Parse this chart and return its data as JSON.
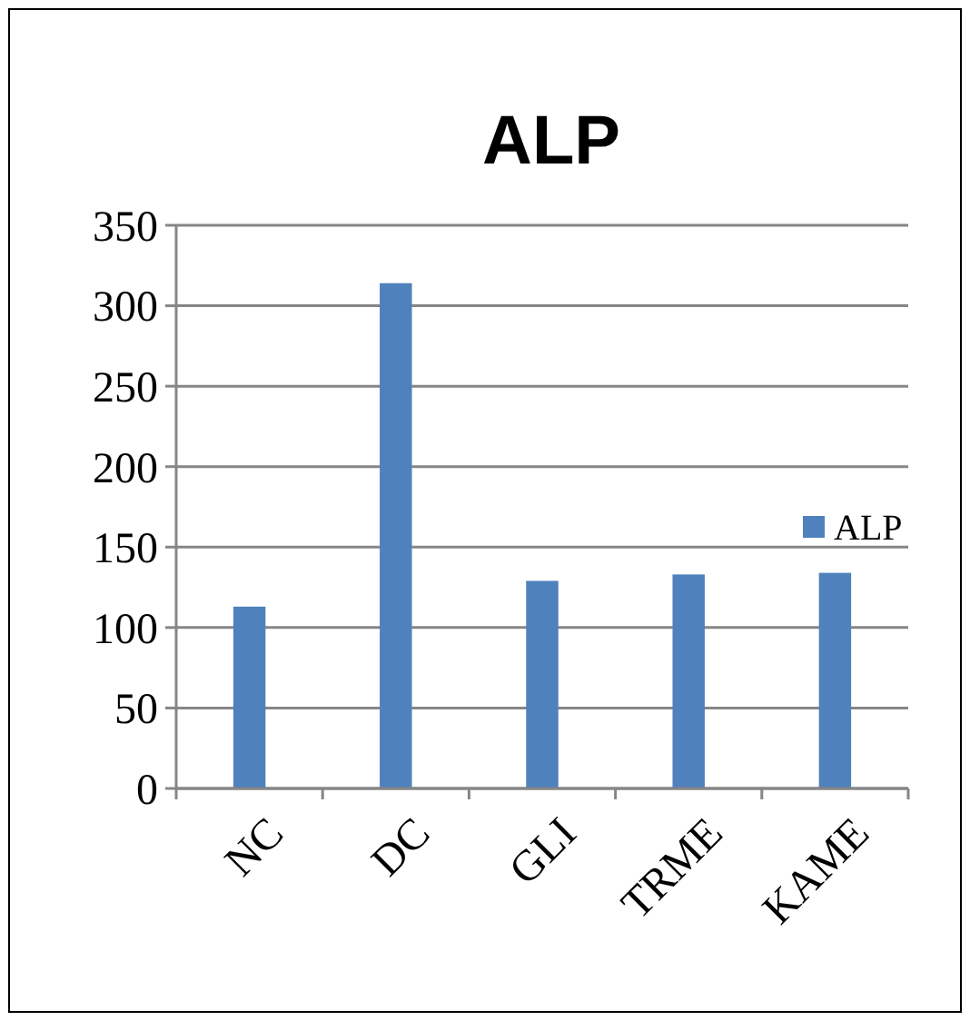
{
  "chart_data": {
    "type": "bar",
    "title": "ALP",
    "categories": [
      "NC",
      "DC",
      "GLI",
      "TRME",
      "KAME"
    ],
    "series": [
      {
        "name": "ALP",
        "color": "#4f81bd",
        "values": [
          113,
          314,
          129,
          133,
          134
        ]
      }
    ],
    "ylim": [
      0,
      350
    ],
    "yticks": [
      0,
      50,
      100,
      150,
      200,
      250,
      300,
      350
    ],
    "grid": "y",
    "legend": "right"
  }
}
